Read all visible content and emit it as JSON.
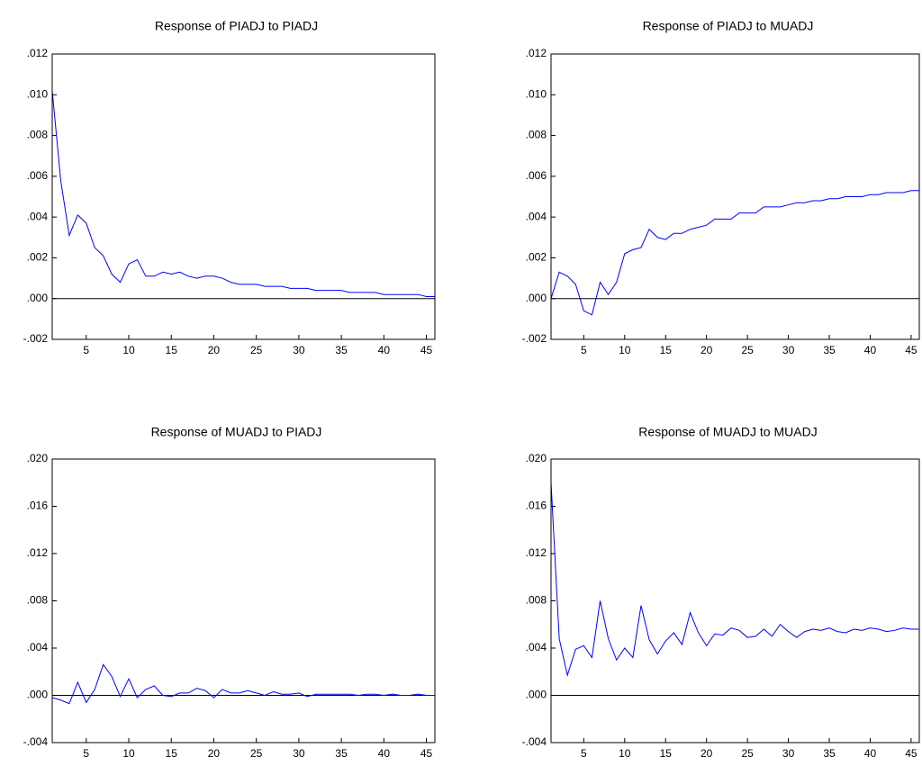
{
  "chart_data": [
    {
      "type": "line",
      "title": "Response of PIADJ to PIADJ",
      "color": "#0000ff",
      "x": [
        1,
        2,
        3,
        4,
        5,
        6,
        7,
        8,
        9,
        10,
        11,
        12,
        13,
        14,
        15,
        16,
        17,
        18,
        19,
        20,
        21,
        22,
        23,
        24,
        25,
        26,
        27,
        28,
        29,
        30,
        31,
        32,
        33,
        34,
        35,
        36,
        37,
        38,
        39,
        40,
        41,
        42,
        43,
        44,
        45,
        46
      ],
      "values": [
        0.0102,
        0.0058,
        0.0031,
        0.0041,
        0.0037,
        0.0025,
        0.0021,
        0.0012,
        0.0008,
        0.0017,
        0.0019,
        0.0011,
        0.0011,
        0.0013,
        0.0012,
        0.0013,
        0.0011,
        0.001,
        0.0011,
        0.0011,
        0.001,
        0.0008,
        0.0007,
        0.0007,
        0.0007,
        0.0006,
        0.0006,
        0.0006,
        0.0005,
        0.0005,
        0.0005,
        0.0004,
        0.0004,
        0.0004,
        0.0004,
        0.0003,
        0.0003,
        0.0003,
        0.0003,
        0.0002,
        0.0002,
        0.0002,
        0.0002,
        0.0002,
        0.0001,
        0.0001
      ],
      "xlim": [
        1,
        46
      ],
      "xticks": [
        5,
        10,
        15,
        20,
        25,
        30,
        35,
        40,
        45
      ],
      "ylim": [
        -0.002,
        0.012
      ],
      "yticks": [
        {
          "value": -0.002,
          "label": "-.002"
        },
        {
          "value": 0,
          "label": ".000"
        },
        {
          "value": 0.002,
          "label": ".002"
        },
        {
          "value": 0.004,
          "label": ".004"
        },
        {
          "value": 0.006,
          "label": ".006"
        },
        {
          "value": 0.008,
          "label": ".008"
        },
        {
          "value": 0.01,
          "label": ".010"
        },
        {
          "value": 0.012,
          "label": ".012"
        }
      ]
    },
    {
      "type": "line",
      "title": "Response of PIADJ to MUADJ",
      "color": "#0000ff",
      "x": [
        1,
        2,
        3,
        4,
        5,
        6,
        7,
        8,
        9,
        10,
        11,
        12,
        13,
        14,
        15,
        16,
        17,
        18,
        19,
        20,
        21,
        22,
        23,
        24,
        25,
        26,
        27,
        28,
        29,
        30,
        31,
        32,
        33,
        34,
        35,
        36,
        37,
        38,
        39,
        40,
        41,
        42,
        43,
        44,
        45,
        46
      ],
      "values": [
        0.0,
        0.0013,
        0.0011,
        0.0007,
        -0.0006,
        -0.0008,
        0.0008,
        0.0002,
        0.0008,
        0.0022,
        0.0024,
        0.0025,
        0.0034,
        0.003,
        0.0029,
        0.0032,
        0.0032,
        0.0034,
        0.0035,
        0.0036,
        0.0039,
        0.0039,
        0.0039,
        0.0042,
        0.0042,
        0.0042,
        0.0045,
        0.0045,
        0.0045,
        0.0046,
        0.0047,
        0.0047,
        0.0048,
        0.0048,
        0.0049,
        0.0049,
        0.005,
        0.005,
        0.005,
        0.0051,
        0.0051,
        0.0052,
        0.0052,
        0.0052,
        0.0053,
        0.0053
      ],
      "xlim": [
        1,
        46
      ],
      "xticks": [
        5,
        10,
        15,
        20,
        25,
        30,
        35,
        40,
        45
      ],
      "ylim": [
        -0.002,
        0.012
      ],
      "yticks": [
        {
          "value": -0.002,
          "label": "-.002"
        },
        {
          "value": 0,
          "label": ".000"
        },
        {
          "value": 0.002,
          "label": ".002"
        },
        {
          "value": 0.004,
          "label": ".004"
        },
        {
          "value": 0.006,
          "label": ".006"
        },
        {
          "value": 0.008,
          "label": ".008"
        },
        {
          "value": 0.01,
          "label": ".010"
        },
        {
          "value": 0.012,
          "label": ".012"
        }
      ]
    },
    {
      "type": "line",
      "title": "Response of MUADJ to PIADJ",
      "color": "#0000ff",
      "x": [
        1,
        2,
        3,
        4,
        5,
        6,
        7,
        8,
        9,
        10,
        11,
        12,
        13,
        14,
        15,
        16,
        17,
        18,
        19,
        20,
        21,
        22,
        23,
        24,
        25,
        26,
        27,
        28,
        29,
        30,
        31,
        32,
        33,
        34,
        35,
        36,
        37,
        38,
        39,
        40,
        41,
        42,
        43,
        44,
        45,
        46
      ],
      "values": [
        -0.0002,
        -0.0004,
        -0.0007,
        0.0011,
        -0.0006,
        0.0005,
        0.0026,
        0.0016,
        -0.0001,
        0.0014,
        -0.0002,
        0.0005,
        0.0008,
        0.0,
        -0.0001,
        0.0002,
        0.0002,
        0.0006,
        0.0004,
        -0.0002,
        0.0005,
        0.0002,
        0.0002,
        0.0004,
        0.0002,
        0.0,
        0.0003,
        0.0001,
        0.0001,
        0.0002,
        -0.0001,
        0.0001,
        0.0001,
        0.0001,
        0.0001,
        0.0001,
        0.0,
        0.0001,
        0.0001,
        0.0,
        0.0001,
        0.0,
        0.0,
        0.0001,
        0.0,
        0.0
      ],
      "xlim": [
        1,
        46
      ],
      "xticks": [
        5,
        10,
        15,
        20,
        25,
        30,
        35,
        40,
        45
      ],
      "ylim": [
        -0.004,
        0.02
      ],
      "yticks": [
        {
          "value": -0.004,
          "label": "-.004"
        },
        {
          "value": 0,
          "label": ".000"
        },
        {
          "value": 0.004,
          "label": ".004"
        },
        {
          "value": 0.008,
          "label": ".008"
        },
        {
          "value": 0.012,
          "label": ".012"
        },
        {
          "value": 0.016,
          "label": ".016"
        },
        {
          "value": 0.02,
          "label": ".020"
        }
      ]
    },
    {
      "type": "line",
      "title": "Response of MUADJ to MUADJ",
      "color": "#0000ff",
      "x": [
        1,
        2,
        3,
        4,
        5,
        6,
        7,
        8,
        9,
        10,
        11,
        12,
        13,
        14,
        15,
        16,
        17,
        18,
        19,
        20,
        21,
        22,
        23,
        24,
        25,
        26,
        27,
        28,
        29,
        30,
        31,
        32,
        33,
        34,
        35,
        36,
        37,
        38,
        39,
        40,
        41,
        42,
        43,
        44,
        45,
        46
      ],
      "values": [
        0.018,
        0.0048,
        0.0017,
        0.0039,
        0.0042,
        0.0032,
        0.008,
        0.0048,
        0.003,
        0.004,
        0.0032,
        0.0076,
        0.0047,
        0.0035,
        0.0046,
        0.0053,
        0.0043,
        0.007,
        0.0053,
        0.0042,
        0.0052,
        0.0051,
        0.0057,
        0.0055,
        0.0049,
        0.005,
        0.0056,
        0.005,
        0.006,
        0.0054,
        0.0049,
        0.0054,
        0.0056,
        0.0055,
        0.0057,
        0.0054,
        0.0053,
        0.0056,
        0.0055,
        0.0057,
        0.0056,
        0.0054,
        0.0055,
        0.0057,
        0.0056,
        0.0056
      ],
      "xlim": [
        1,
        46
      ],
      "xticks": [
        5,
        10,
        15,
        20,
        25,
        30,
        35,
        40,
        45
      ],
      "ylim": [
        -0.004,
        0.02
      ],
      "yticks": [
        {
          "value": -0.004,
          "label": "-.004"
        },
        {
          "value": 0,
          "label": ".000"
        },
        {
          "value": 0.004,
          "label": ".004"
        },
        {
          "value": 0.008,
          "label": ".008"
        },
        {
          "value": 0.012,
          "label": ".012"
        },
        {
          "value": 0.016,
          "label": ".016"
        },
        {
          "value": 0.02,
          "label": ".020"
        }
      ]
    }
  ]
}
